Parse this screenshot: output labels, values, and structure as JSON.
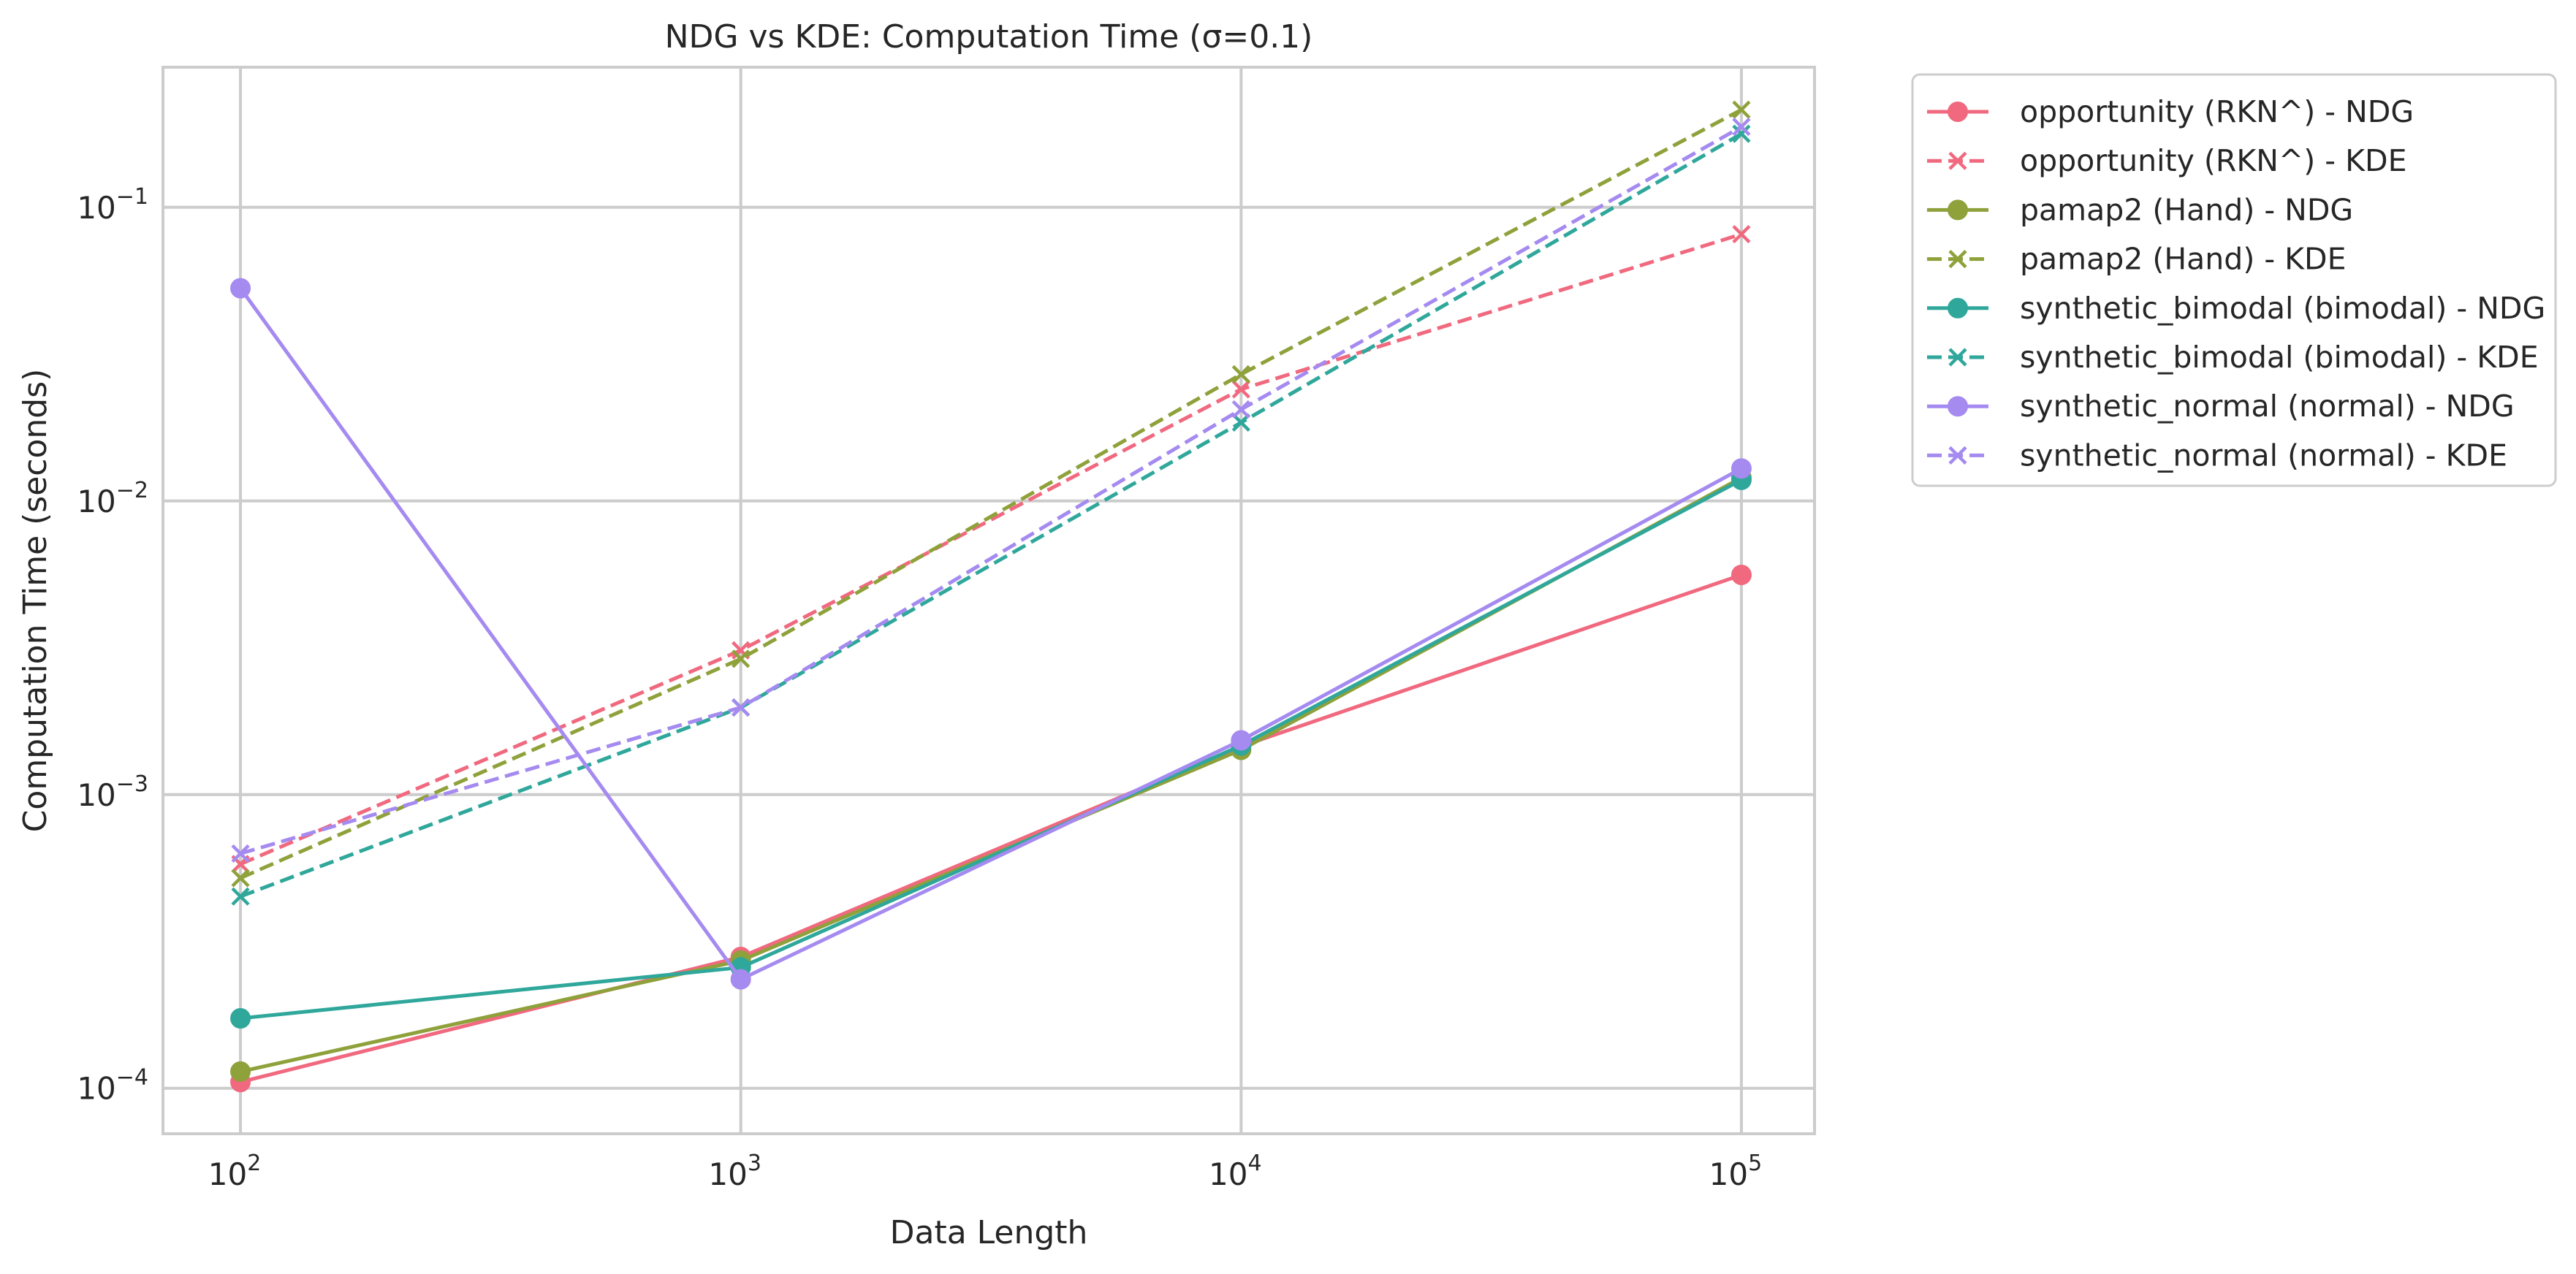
{
  "chart_data": {
    "type": "line",
    "title": "NDG vs KDE: Computation Time (σ=0.1)",
    "xlabel": "Data Length",
    "ylabel": "Computation Time (seconds)",
    "xscale": "log",
    "yscale": "log",
    "xlim": [
      70,
      140000
    ],
    "ylim": [
      7e-05,
      0.3
    ],
    "grid": true,
    "legend_position": "outside-right",
    "x_ticks": [
      {
        "value": 100,
        "base": "10",
        "exp": "2"
      },
      {
        "value": 1000,
        "base": "10",
        "exp": "3"
      },
      {
        "value": 10000,
        "base": "10",
        "exp": "4"
      },
      {
        "value": 100000,
        "base": "10",
        "exp": "5"
      }
    ],
    "y_ticks": [
      {
        "value": 0.0001,
        "base": "10",
        "exp": "−4"
      },
      {
        "value": 0.001,
        "base": "10",
        "exp": "−3"
      },
      {
        "value": 0.01,
        "base": "10",
        "exp": "−2"
      },
      {
        "value": 0.1,
        "base": "10",
        "exp": "−1"
      }
    ],
    "x": [
      100,
      1000,
      10000,
      100000
    ],
    "series": [
      {
        "name": "opportunity (RKN^) - NDG",
        "color": "#f0697f",
        "style": "solid",
        "marker": "circle",
        "values": [
          0.000105,
          0.00028,
          0.00146,
          0.0056
        ]
      },
      {
        "name": "opportunity (RKN^) - KDE",
        "color": "#f0697f",
        "style": "dashed",
        "marker": "x",
        "values": [
          0.00058,
          0.0031,
          0.024,
          0.081
        ]
      },
      {
        "name": "pamap2 (Hand) - NDG",
        "color": "#8ea13a",
        "style": "solid",
        "marker": "circle",
        "values": [
          0.000114,
          0.000272,
          0.00142,
          0.012
        ]
      },
      {
        "name": "pamap2 (Hand) - KDE",
        "color": "#8ea13a",
        "style": "dashed",
        "marker": "x",
        "values": [
          0.00052,
          0.0029,
          0.027,
          0.215
        ]
      },
      {
        "name": "synthetic_bimodal (bimodal) - NDG",
        "color": "#2fa79b",
        "style": "solid",
        "marker": "circle",
        "values": [
          0.000173,
          0.000258,
          0.00147,
          0.0118
        ]
      },
      {
        "name": "synthetic_bimodal (bimodal) - KDE",
        "color": "#2fa79b",
        "style": "dashed",
        "marker": "x",
        "values": [
          0.00045,
          0.00198,
          0.0185,
          0.178
        ]
      },
      {
        "name": "synthetic_normal (normal) - NDG",
        "color": "#a58af0",
        "style": "solid",
        "marker": "circle",
        "values": [
          0.053,
          0.000235,
          0.00153,
          0.0129
        ]
      },
      {
        "name": "synthetic_normal (normal) - KDE",
        "color": "#a58af0",
        "style": "dashed",
        "marker": "x",
        "values": [
          0.00063,
          0.00198,
          0.0205,
          0.188
        ]
      }
    ]
  }
}
